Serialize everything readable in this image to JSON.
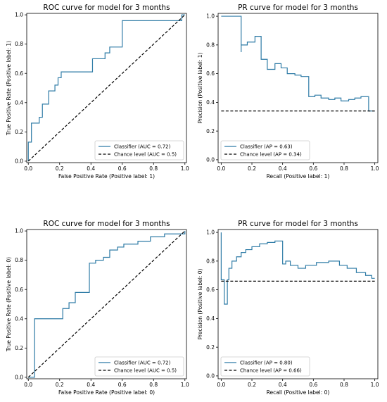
{
  "colors": {
    "classifier": "#2e7ba6",
    "chance": "#000000",
    "axis": "#000000"
  },
  "chart_data": [
    {
      "type": "line",
      "title": "ROC curve for model for 3 months",
      "xlabel": "False Positive Rate (Positive label: 1)",
      "ylabel": "True Positive Rate (Positive label: 1)",
      "xlim": [
        -0.01,
        1.01
      ],
      "ylim": [
        -0.01,
        1.01
      ],
      "xticks": [
        "0.0",
        "0.2",
        "0.4",
        "0.6",
        "0.8",
        "1.0"
      ],
      "yticks": [
        "0.0",
        "0.2",
        "0.4",
        "0.6",
        "0.8",
        "1.0"
      ],
      "legend": "lower-right",
      "series": [
        {
          "name": "Classifier (AUC = 0.72)",
          "style": "step",
          "x": [
            0,
            0,
            0.02,
            0.02,
            0.07,
            0.07,
            0.09,
            0.09,
            0.13,
            0.13,
            0.17,
            0.17,
            0.19,
            0.19,
            0.21,
            0.21,
            0.41,
            0.41,
            0.49,
            0.49,
            0.52,
            0.52,
            0.56,
            0.56,
            0.6,
            0.6,
            0.98,
            0.98,
            1.0
          ],
          "y": [
            0,
            0.13,
            0.13,
            0.26,
            0.26,
            0.3,
            0.3,
            0.39,
            0.39,
            0.48,
            0.48,
            0.52,
            0.52,
            0.57,
            0.57,
            0.61,
            0.61,
            0.7,
            0.7,
            0.74,
            0.74,
            0.78,
            0.78,
            0.78,
            0.78,
            0.96,
            0.96,
            1.0,
            1.0
          ]
        },
        {
          "name": "Chance level (AUC = 0.5)",
          "style": "dashed",
          "x": [
            0,
            1
          ],
          "y": [
            0,
            1
          ]
        }
      ]
    },
    {
      "type": "line",
      "title": "PR curve for model for 3 months",
      "xlabel": "Recall (Positive label: 1)",
      "ylabel": "Precision (Positive label: 1)",
      "xlim": [
        -0.02,
        1.02
      ],
      "ylim": [
        -0.02,
        1.02
      ],
      "xticks": [
        "0.0",
        "0.2",
        "0.4",
        "0.6",
        "0.8",
        "1.0"
      ],
      "yticks": [
        "0.0",
        "0.2",
        "0.4",
        "0.6",
        "0.8",
        "1.0"
      ],
      "legend": "lower-left",
      "series": [
        {
          "name": "Classifier (AP = 0.63)",
          "style": "step",
          "x": [
            0,
            0.13,
            0.13,
            0.13,
            0.13,
            0.17,
            0.17,
            0.22,
            0.22,
            0.26,
            0.26,
            0.3,
            0.3,
            0.35,
            0.35,
            0.39,
            0.39,
            0.43,
            0.43,
            0.48,
            0.48,
            0.52,
            0.52,
            0.57,
            0.57,
            0.61,
            0.61,
            0.65,
            0.65,
            0.7,
            0.7,
            0.74,
            0.74,
            0.78,
            0.78,
            0.83,
            0.83,
            0.87,
            0.87,
            0.91,
            0.91,
            0.96,
            0.96,
            1.0
          ],
          "y": [
            1.0,
            1.0,
            0.75,
            0.75,
            0.8,
            0.8,
            0.82,
            0.82,
            0.86,
            0.86,
            0.7,
            0.7,
            0.63,
            0.63,
            0.67,
            0.67,
            0.64,
            0.64,
            0.6,
            0.6,
            0.59,
            0.59,
            0.58,
            0.58,
            0.44,
            0.44,
            0.45,
            0.45,
            0.43,
            0.43,
            0.42,
            0.42,
            0.43,
            0.43,
            0.41,
            0.41,
            0.42,
            0.42,
            0.43,
            0.43,
            0.44,
            0.44,
            0.34,
            0.34
          ]
        },
        {
          "name": "Chance level (AP = 0.34)",
          "style": "dashed",
          "x": [
            0,
            1
          ],
          "y": [
            0.34,
            0.34
          ]
        }
      ]
    },
    {
      "type": "line",
      "title": "ROC curve for model for 3 months",
      "xlabel": "False Positive Rate (Positive label: 0)",
      "ylabel": "True Positive Rate (Positive label: 0)",
      "xlim": [
        -0.01,
        1.01
      ],
      "ylim": [
        -0.01,
        1.01
      ],
      "xticks": [
        "0.0",
        "0.2",
        "0.4",
        "0.6",
        "0.8",
        "1.0"
      ],
      "yticks": [
        "0.0",
        "0.2",
        "0.4",
        "0.6",
        "0.8",
        "1.0"
      ],
      "legend": "lower-right",
      "series": [
        {
          "name": "Classifier (AUC = 0.72)",
          "style": "step",
          "x": [
            0,
            0.04,
            0.04,
            0.04,
            0.04,
            0.22,
            0.22,
            0.26,
            0.26,
            0.3,
            0.3,
            0.39,
            0.39,
            0.43,
            0.43,
            0.48,
            0.48,
            0.52,
            0.52,
            0.57,
            0.57,
            0.61,
            0.61,
            0.7,
            0.7,
            0.78,
            0.78,
            0.87,
            0.87,
            1.0,
            1.0
          ],
          "y": [
            0,
            0,
            0.04,
            0.04,
            0.4,
            0.4,
            0.47,
            0.47,
            0.51,
            0.51,
            0.58,
            0.58,
            0.78,
            0.78,
            0.8,
            0.8,
            0.82,
            0.82,
            0.87,
            0.87,
            0.89,
            0.89,
            0.91,
            0.91,
            0.93,
            0.93,
            0.96,
            0.96,
            0.98,
            0.98,
            1.0
          ]
        },
        {
          "name": "Chance level (AUC = 0.5)",
          "style": "dashed",
          "x": [
            0,
            1
          ],
          "y": [
            0,
            1
          ]
        }
      ]
    },
    {
      "type": "line",
      "title": "PR curve for model for 3 months",
      "xlabel": "Recall (Positive label: 0)",
      "ylabel": "Precision (Positive label: 0)",
      "xlim": [
        -0.02,
        1.02
      ],
      "ylim": [
        -0.02,
        1.02
      ],
      "xticks": [
        "0.0",
        "0.2",
        "0.4",
        "0.6",
        "0.8",
        "1.0"
      ],
      "yticks": [
        "0.0",
        "0.2",
        "0.4",
        "0.6",
        "0.8",
        "1.0"
      ],
      "legend": "lower-left",
      "series": [
        {
          "name": "Classifier (AP = 0.80)",
          "style": "step",
          "x": [
            0,
            0,
            0.02,
            0.02,
            0.04,
            0.04,
            0.05,
            0.05,
            0.07,
            0.07,
            0.1,
            0.1,
            0.13,
            0.13,
            0.16,
            0.16,
            0.2,
            0.2,
            0.25,
            0.25,
            0.3,
            0.3,
            0.35,
            0.35,
            0.4,
            0.4,
            0.42,
            0.42,
            0.45,
            0.45,
            0.5,
            0.5,
            0.55,
            0.55,
            0.62,
            0.62,
            0.7,
            0.7,
            0.77,
            0.77,
            0.82,
            0.82,
            0.88,
            0.88,
            0.94,
            0.94,
            0.98,
            0.98,
            1.0
          ],
          "y": [
            1.0,
            0.67,
            0.67,
            0.5,
            0.5,
            0.67,
            0.67,
            0.75,
            0.75,
            0.8,
            0.8,
            0.83,
            0.83,
            0.86,
            0.86,
            0.88,
            0.88,
            0.9,
            0.9,
            0.92,
            0.92,
            0.93,
            0.93,
            0.94,
            0.94,
            0.78,
            0.78,
            0.8,
            0.8,
            0.77,
            0.77,
            0.75,
            0.75,
            0.77,
            0.77,
            0.79,
            0.79,
            0.8,
            0.8,
            0.77,
            0.77,
            0.75,
            0.75,
            0.72,
            0.72,
            0.7,
            0.7,
            0.68,
            0.68
          ]
        },
        {
          "name": "Chance level (AP = 0.66)",
          "style": "dashed",
          "x": [
            0,
            1
          ],
          "y": [
            0.66,
            0.66
          ]
        }
      ]
    }
  ]
}
